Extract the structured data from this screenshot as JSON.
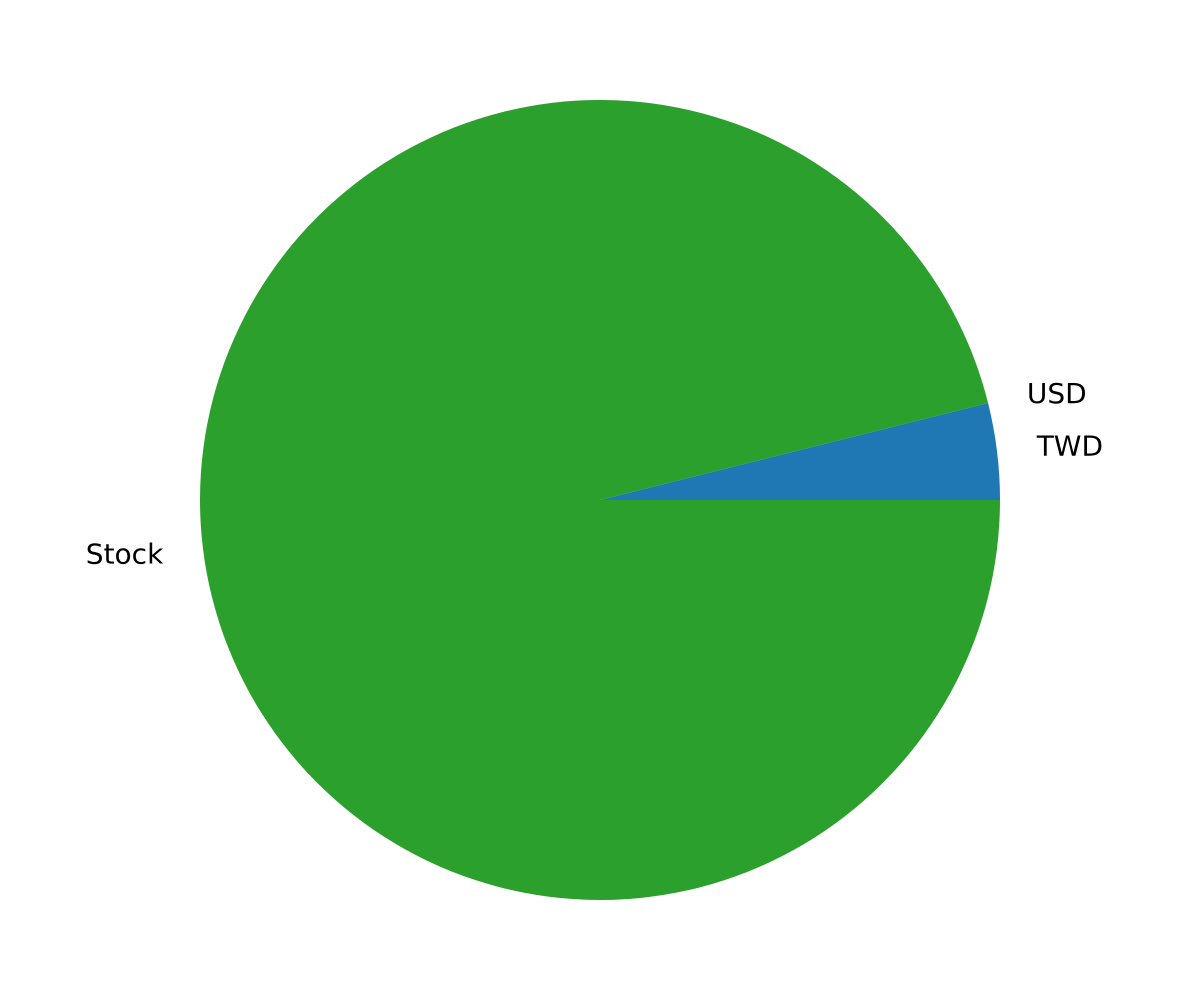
{
  "chart_data": {
    "type": "pie",
    "title": "",
    "start_angle_deg": 0,
    "direction": "counterclockwise",
    "legend": "none",
    "slices": [
      {
        "label": "TWD",
        "value": 3.9,
        "color": "#1f77b4"
      },
      {
        "label": "USD",
        "value": 0.0,
        "color": "#ff7f0e"
      },
      {
        "label": "Stock",
        "value": 96.1,
        "color": "#2ca02c"
      }
    ]
  }
}
